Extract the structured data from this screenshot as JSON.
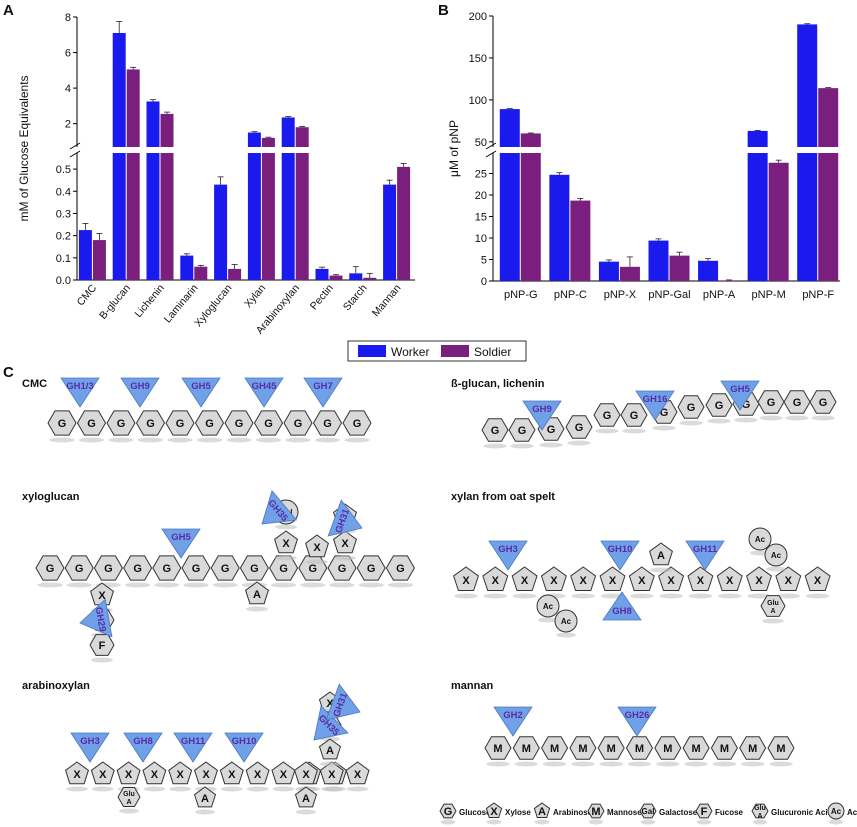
{
  "panels": {
    "a": "A",
    "b": "B",
    "c": "C"
  },
  "legend": {
    "worker": "Worker",
    "soldier": "Soldier"
  },
  "colors": {
    "worker": "#1a1aee",
    "soldier": "#7b1f7e",
    "enzyme": "#6fa0e8",
    "enzyme_text": "#5a2ca6"
  },
  "chart_data": [
    {
      "type": "bar",
      "title": "",
      "ylabel": "mM of Glucose Equivalents",
      "xlabel": "",
      "categories": [
        "CMC",
        "B-glucan",
        "Lichenin",
        "Laminarin",
        "Xyloglucan",
        "Xylan",
        "Arabinoxylan",
        "Pectin",
        "Starch",
        "Mannan"
      ],
      "series": [
        {
          "name": "Worker",
          "values": [
            0.225,
            7.1,
            3.25,
            0.11,
            0.43,
            1.5,
            2.35,
            0.05,
            0.03,
            0.43
          ],
          "errors": [
            0.03,
            0.65,
            0.1,
            0.008,
            0.035,
            0.05,
            0.05,
            0.008,
            0.03,
            0.02
          ]
        },
        {
          "name": "Soldier",
          "values": [
            0.18,
            5.05,
            2.55,
            0.06,
            0.05,
            1.2,
            1.8,
            0.02,
            0.01,
            0.51
          ],
          "errors": [
            0.03,
            0.12,
            0.1,
            0.006,
            0.02,
            0.04,
            0.04,
            0.004,
            0.02,
            0.015
          ]
        }
      ],
      "axis_break": true,
      "ylim_lower": [
        0,
        0.55
      ],
      "ylim_upper": [
        0.8,
        8
      ],
      "yticks_lower": [
        "0.0",
        "0.1",
        "0.2",
        "0.3",
        "0.4",
        "0.5"
      ],
      "yticks_upper": [
        "2",
        "4",
        "6",
        "8"
      ]
    },
    {
      "type": "bar",
      "title": "",
      "ylabel": "μM of pNP",
      "xlabel": "",
      "categories": [
        "pNP-G",
        "pNP-C",
        "pNP-X",
        "pNP-Gal",
        "pNP-A",
        "pNP-M",
        "pNP-F"
      ],
      "series": [
        {
          "name": "Worker",
          "values": [
            89,
            24.7,
            4.5,
            9.4,
            4.7,
            63,
            190
          ],
          "errors": [
            0.6,
            0.5,
            0.4,
            0.4,
            0.5,
            0.6,
            0.8
          ]
        },
        {
          "name": "Soldier",
          "values": [
            60,
            18.7,
            3.3,
            5.9,
            0.15,
            27.5,
            114
          ],
          "errors": [
            0.5,
            0.5,
            2.3,
            0.8,
            0.1,
            0.6,
            0.6
          ]
        }
      ],
      "axis_break": true,
      "ylim_lower": [
        0,
        30
      ],
      "ylim_upper": [
        45,
        200
      ],
      "yticks_lower": [
        "0",
        "5",
        "10",
        "15",
        "20",
        "25"
      ],
      "yticks_upper": [
        "50",
        "100",
        "150",
        "200"
      ]
    }
  ],
  "diagrams": {
    "cmc": {
      "title": "CMC",
      "residue": "G",
      "enzymes": [
        "GH1/3",
        "GH9",
        "GH5",
        "GH45",
        "GH7"
      ]
    },
    "bglucan": {
      "title": "ß-glucan, lichenin",
      "residue": "G",
      "enzymes": [
        "GH9",
        "GH16",
        "GH5"
      ]
    },
    "xyloglucan": {
      "title": "xyloglucan",
      "main": "G",
      "side": [
        "X",
        "Gal",
        "F",
        "A",
        "X",
        "Gal",
        "X",
        "X",
        "A"
      ],
      "enzymes": [
        "GH5",
        "GH35",
        "GH31",
        "GH29"
      ]
    },
    "xylan": {
      "title": "xylan from oat spelt",
      "main": "X",
      "side": [
        "Ac",
        "Ac",
        "A",
        "Ac",
        "Ac",
        "Glu A"
      ],
      "enzymes": [
        "GH3",
        "GH10",
        "GH11",
        "GH8"
      ]
    },
    "arabinoxylan": {
      "title": "arabinoxylan",
      "main": "X",
      "side": [
        "Glu A",
        "A",
        "A",
        "X",
        "Gal",
        "A"
      ],
      "enzymes": [
        "GH3",
        "GH8",
        "GH11",
        "GH10",
        "GH35",
        "GH31"
      ]
    },
    "mannan": {
      "title": "mannan",
      "residue": "M",
      "enzymes": [
        "GH2",
        "GH26"
      ]
    }
  },
  "key": [
    {
      "sym": "G",
      "name": "Glucose"
    },
    {
      "sym": "X",
      "name": "Xylose"
    },
    {
      "sym": "A",
      "name": "Arabinose"
    },
    {
      "sym": "M",
      "name": "Mannose"
    },
    {
      "sym": "Gal",
      "name": "Galactose"
    },
    {
      "sym": "F",
      "name": "Fucose"
    },
    {
      "sym": "Glu A",
      "name": "Glucuronic Acid"
    },
    {
      "sym": "Ac",
      "name": "Acetyl"
    }
  ]
}
